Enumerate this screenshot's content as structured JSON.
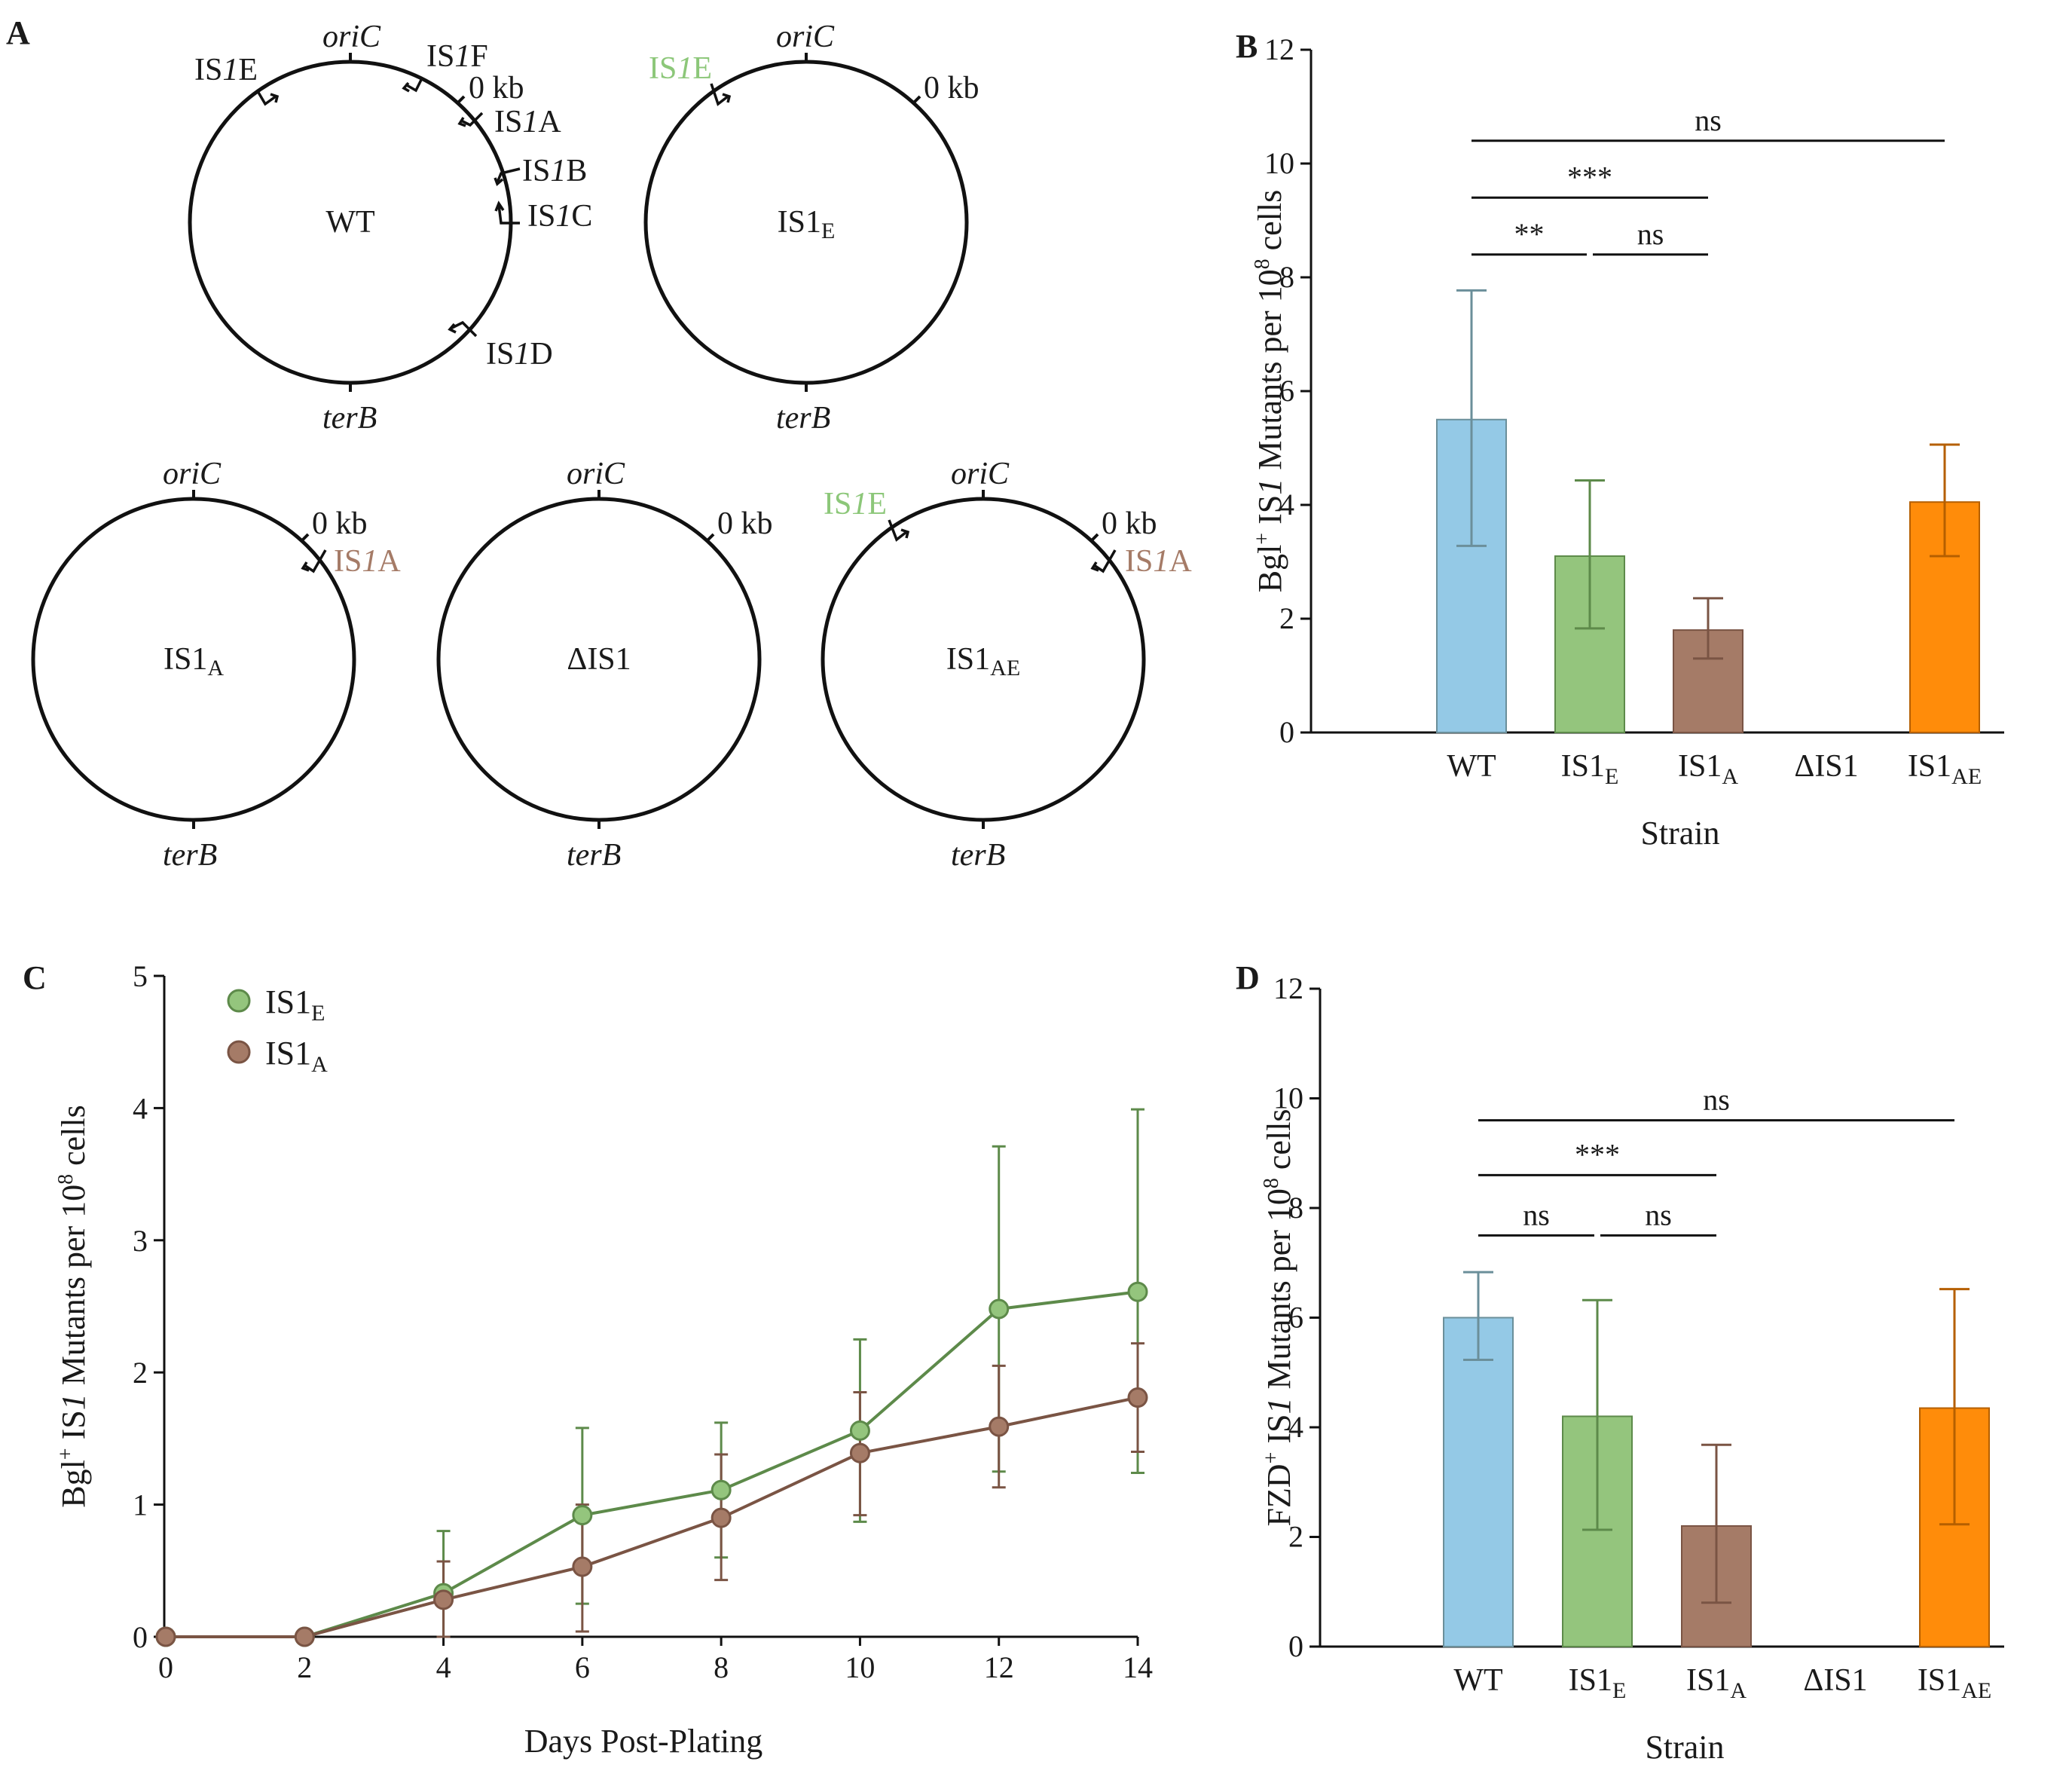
{
  "colors": {
    "wt": "#94c9e6",
    "is1e": "#94c57d",
    "is1a": "#a57b67",
    "delta": "#cccccc",
    "is1ae": "#ff8c0a",
    "wt_err": "#6b8f9a",
    "is1e_err": "#5d8a4a",
    "is1a_err": "#7a5444",
    "is1ae_err": "#b55f00",
    "line_e": "#5d8a4a",
    "line_a": "#7a5444",
    "label_green": "#8cc779",
    "label_brown": "#a57b67"
  },
  "panel_a": {
    "label": "A",
    "ori_label": "oriC",
    "ter_label": "terB",
    "kb_label": "0 kb",
    "maps": [
      {
        "center": "WT",
        "elements": [
          "IS1E",
          "IS1F",
          "IS1A",
          "IS1B",
          "IS1C",
          "IS1D"
        ]
      },
      {
        "center": "IS1",
        "center_sub": "E",
        "elements": [
          "IS1E"
        ]
      },
      {
        "center": "IS1",
        "center_sub": "A",
        "elements": [
          "IS1A"
        ]
      },
      {
        "center": "ΔIS1",
        "elements": []
      },
      {
        "center": "IS1",
        "center_sub": "AE",
        "elements": [
          "IS1E",
          "IS1A"
        ]
      }
    ]
  },
  "chart_data": [
    {
      "panel": "B",
      "type": "bar",
      "categories": [
        "WT",
        "IS1E",
        "IS1A",
        "ΔIS1",
        "IS1AE"
      ],
      "category_labels": [
        {
          "main": "WT",
          "sub": ""
        },
        {
          "main": "IS1",
          "sub": "E"
        },
        {
          "main": "IS1",
          "sub": "A"
        },
        {
          "main": "ΔIS1",
          "sub": ""
        },
        {
          "main": "IS1",
          "sub": "AE"
        }
      ],
      "values": [
        5.5,
        3.1,
        1.8,
        0,
        4.05
      ],
      "error_low": [
        3.28,
        1.83,
        1.3,
        0,
        3.1
      ],
      "error_high": [
        7.77,
        4.43,
        2.36,
        0,
        5.06
      ],
      "ylim": [
        0,
        12
      ],
      "yticks": [
        0,
        2,
        4,
        6,
        8,
        10,
        12
      ],
      "xlabel": "Strain",
      "ylabel_parts": [
        "Bgl",
        "+",
        " IS",
        "1",
        " Mutants per 10",
        "8",
        " cells"
      ],
      "significance": [
        {
          "from": 0,
          "to": 4,
          "label": "ns",
          "level": 10.4
        },
        {
          "from": 0,
          "to": 2,
          "label": "***",
          "level": 9.4
        },
        {
          "from": 0,
          "to": 1,
          "label": "**",
          "level": 8.4
        },
        {
          "from": 1,
          "to": 2,
          "label": "ns",
          "level": 8.4
        }
      ]
    },
    {
      "panel": "C",
      "type": "line",
      "x": [
        0,
        2,
        4,
        6,
        8,
        10,
        12,
        14
      ],
      "xlim": [
        0,
        14
      ],
      "ylim": [
        0,
        5
      ],
      "xticks": [
        0,
        2,
        4,
        6,
        8,
        10,
        12,
        14
      ],
      "yticks": [
        0,
        1,
        2,
        3,
        4,
        5
      ],
      "xlabel": "Days Post-Plating",
      "ylabel_parts": [
        "Bgl",
        "+",
        " IS",
        "1",
        " Mutants per 10",
        "8",
        " cells"
      ],
      "series": [
        {
          "name": "IS1E",
          "legend_main": "IS1",
          "legend_sub": "E",
          "values": [
            0,
            0,
            0.33,
            0.92,
            1.11,
            1.56,
            2.48,
            2.61
          ],
          "error_low": [
            0,
            0,
            0,
            0.25,
            0.6,
            0.87,
            1.25,
            1.24
          ],
          "error_high": [
            0,
            0,
            0.8,
            1.58,
            1.62,
            2.25,
            3.71,
            3.99
          ]
        },
        {
          "name": "IS1A",
          "legend_main": "IS1",
          "legend_sub": "A",
          "values": [
            0,
            0,
            0.28,
            0.53,
            0.9,
            1.39,
            1.59,
            1.81
          ],
          "error_low": [
            0,
            0,
            0,
            0.04,
            0.43,
            0.92,
            1.13,
            1.4
          ],
          "error_high": [
            0,
            0,
            0.57,
            1.0,
            1.38,
            1.85,
            2.05,
            2.22
          ]
        }
      ]
    },
    {
      "panel": "D",
      "type": "bar",
      "categories": [
        "WT",
        "IS1E",
        "IS1A",
        "ΔIS1",
        "IS1AE"
      ],
      "category_labels": [
        {
          "main": "WT",
          "sub": ""
        },
        {
          "main": "IS1",
          "sub": "E"
        },
        {
          "main": "IS1",
          "sub": "A"
        },
        {
          "main": "ΔIS1",
          "sub": ""
        },
        {
          "main": "IS1",
          "sub": "AE"
        }
      ],
      "values": [
        6.0,
        4.2,
        2.2,
        0,
        4.35
      ],
      "error_low": [
        5.23,
        2.13,
        0.8,
        0,
        2.23
      ],
      "error_high": [
        6.83,
        6.32,
        3.68,
        0,
        6.52
      ],
      "ylim": [
        0,
        12
      ],
      "yticks": [
        0,
        2,
        4,
        6,
        8,
        10,
        12
      ],
      "xlabel": "Strain",
      "ylabel_parts": [
        "FZD",
        "+",
        " IS",
        "1",
        " Mutants per 10",
        "8",
        " cells"
      ],
      "significance": [
        {
          "from": 0,
          "to": 4,
          "label": "ns",
          "level": 9.6
        },
        {
          "from": 0,
          "to": 2,
          "label": "***",
          "level": 8.6
        },
        {
          "from": 0,
          "to": 1,
          "label": "ns",
          "level": 7.5
        },
        {
          "from": 1,
          "to": 2,
          "label": "ns",
          "level": 7.5
        }
      ]
    }
  ]
}
